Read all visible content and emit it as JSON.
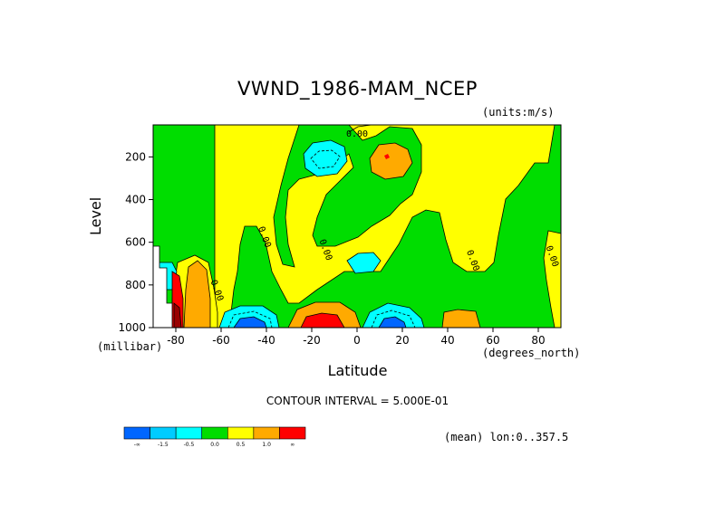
{
  "chart_data": {
    "type": "heatmap",
    "title": "VWND_1986-MAM_NCEP",
    "units": "(units:m/s)",
    "xlabel": "Latitude",
    "x_unit_label": "(degrees_north)",
    "ylabel": "Level",
    "y_unit_label": "(millibar)",
    "contour_interval": "CONTOUR INTERVAL = 5.000E-01",
    "mean_label": "(mean) lon:0..357.5",
    "xlim": [
      -90,
      90
    ],
    "ylim": [
      1000,
      50
    ],
    "x_ticks": [
      -80,
      -60,
      -40,
      -20,
      0,
      20,
      40,
      60,
      80
    ],
    "x_tick_labels": [
      "-80",
      "-60",
      "-40",
      "-20",
      "0",
      "20",
      "40",
      "60",
      "80"
    ],
    "y_ticks": [
      200,
      400,
      600,
      800,
      1000
    ],
    "y_tick_labels": [
      "200",
      "400",
      "600",
      "800",
      "1000"
    ],
    "colorbar": {
      "colors": [
        "#0066ff",
        "#00ccff",
        "#00ffff",
        "#00dd00",
        "#ffff00",
        "#ffaa00",
        "#ff0000"
      ],
      "tick_labels": [
        "-∞",
        "-1.5",
        "-0.5",
        "0.0",
        "0.5",
        "1.0",
        "∞"
      ]
    },
    "contour_labels": [
      {
        "text": "0.00",
        "lat": 0,
        "lev": 105
      },
      {
        "text": "0.00",
        "lat": -42,
        "lev": 580
      },
      {
        "text": "0.00",
        "lat": -15,
        "lev": 640
      },
      {
        "text": "0.00",
        "lat": 50,
        "lev": 690
      },
      {
        "text": "0.00",
        "lat": 85,
        "lev": 670
      },
      {
        "text": "0.00",
        "lat": -63,
        "lev": 830
      }
    ]
  }
}
